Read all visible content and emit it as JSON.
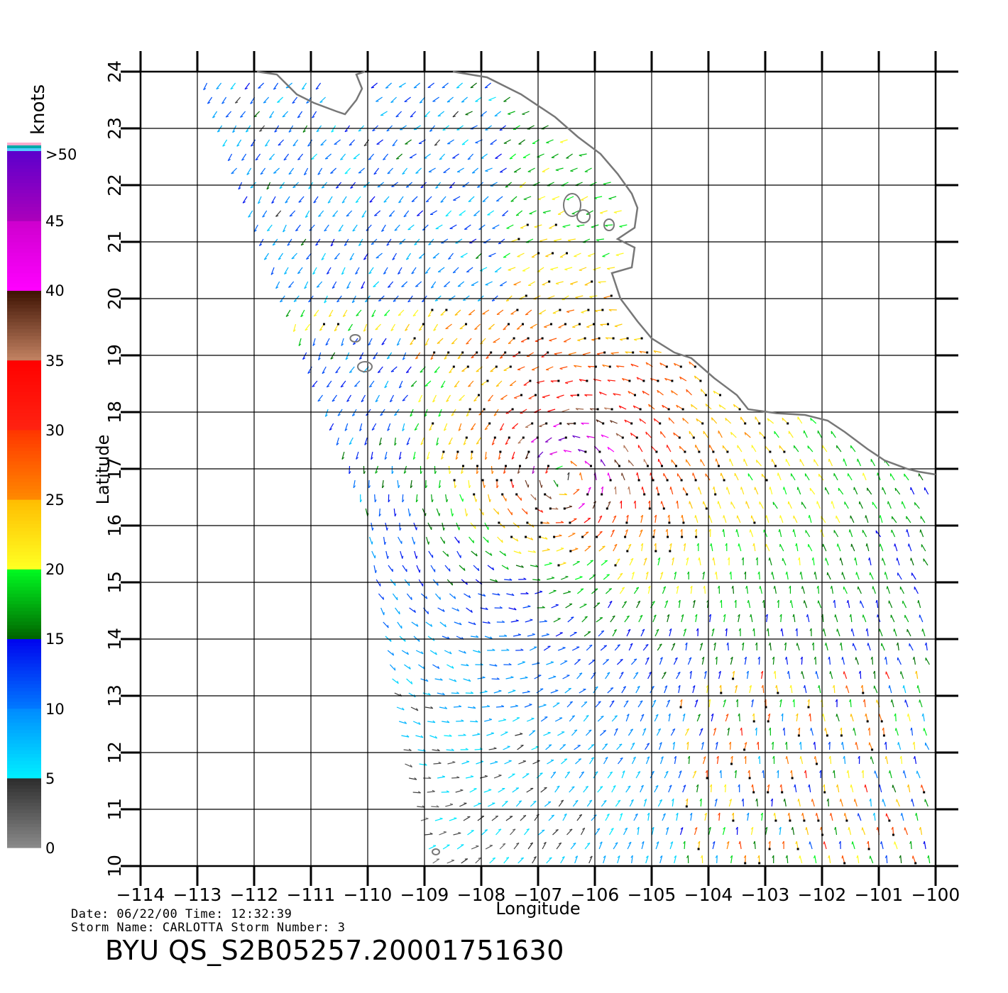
{
  "chart_data": {
    "type": "wind-vector-map",
    "xlabel": "Longitude",
    "ylabel": "Latitude",
    "xlim": [
      -114,
      -100
    ],
    "ylim": [
      10,
      24
    ],
    "x_ticks": [
      "−114",
      "−113",
      "−112",
      "−111",
      "−110",
      "−109",
      "−108",
      "−107",
      "−106",
      "−105",
      "−104",
      "−103",
      "−102",
      "−101",
      "−100"
    ],
    "y_ticks": [
      "10",
      "11",
      "12",
      "13",
      "14",
      "15",
      "16",
      "17",
      "18",
      "19",
      "20",
      "21",
      "22",
      "23",
      "24"
    ],
    "grid": true,
    "storm_center": {
      "lon": -106.5,
      "lat": 16.9
    },
    "colorbar": {
      "unit": "knots",
      "labels": [
        "0",
        "5",
        "10",
        "15",
        "20",
        "25",
        "30",
        "35",
        "40",
        "45",
        ">50"
      ],
      "bands": [
        {
          "min": 0,
          "max": 5,
          "from": "#888888",
          "to": "#2a2a2a"
        },
        {
          "min": 5,
          "max": 10,
          "from": "#00eeff",
          "to": "#0088ff"
        },
        {
          "min": 10,
          "max": 15,
          "from": "#0077ff",
          "to": "#0000ee"
        },
        {
          "min": 15,
          "max": 20,
          "from": "#006600",
          "to": "#00ff22"
        },
        {
          "min": 20,
          "max": 25,
          "from": "#ffff22",
          "to": "#ffbb00"
        },
        {
          "min": 25,
          "max": 30,
          "from": "#ff8800",
          "to": "#ff3300"
        },
        {
          "min": 30,
          "max": 35,
          "from": "#ff2211",
          "to": "#ff0000"
        },
        {
          "min": 35,
          "max": 40,
          "from": "#c08060",
          "to": "#3a0f00"
        },
        {
          "min": 40,
          "max": 45,
          "from": "#ff00ff",
          "to": "#cc00cc"
        },
        {
          "min": 45,
          "max": 50,
          "from": "#aa00bb",
          "to": "#5a00cc"
        }
      ],
      "over_colors": [
        "#55ccff",
        "#00aaaa",
        "#ffaacc",
        "#ffffff"
      ]
    }
  },
  "info": {
    "date_line": "Date: 06/22/00   Time: 12:32:39",
    "storm_line": "Storm Name: CARLOTTA   Storm Number: 3",
    "title": "BYU QS_S2B05257.20001751630"
  }
}
